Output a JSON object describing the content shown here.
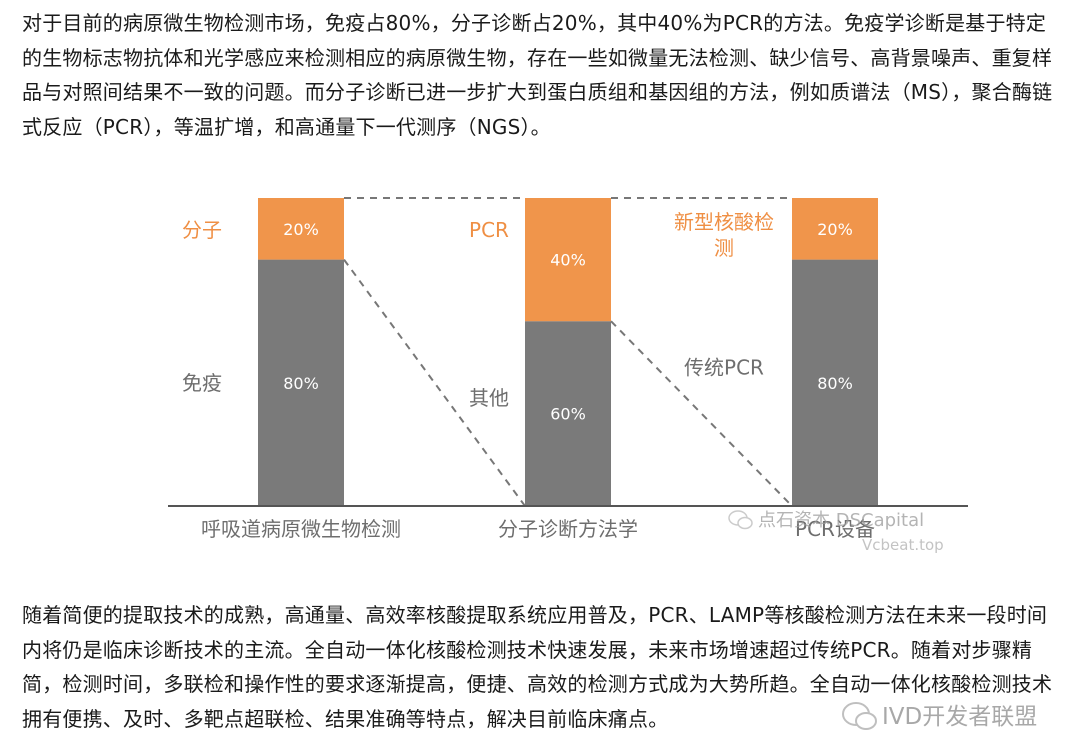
{
  "paragraphs": {
    "intro": "对于目前的病原微生物检测市场，免疫占80%，分子诊断占20%，其中40%为PCR的方法。免疫学诊断是基于特定的生物标志物抗体和光学感应来检测相应的病原微生物，存在一些如微量无法检测、缺少信号、高背景噪声、重复样品与对照间结果不一致的问题。而分子诊断已进一步扩大到蛋白质组和基因组的方法，例如质谱法（MS），聚合酶链式反应（PCR），等温扩增，和高通量下一代测序（NGS）。",
    "outro": "随着简便的提取技术的成熟，高通量、高效率核酸提取系统应用普及，PCR、LAMP等核酸检测方法在未来一段时间内将仍是临床诊断技术的主流。全自动一体化核酸检测技术快速发展，未来市场增速超过传统PCR。随着对步骤精简，检测时间，多联检和操作性的要求逐渐提高，便捷、高效的检测方式成为大势所趋。全自动一体化核酸检测技术拥有便携、及时、多靶点超联检、结果准确等特点，解决目前临床痛点。"
  },
  "colors": {
    "orange": "#F0954B",
    "gray": "#7A7A7A",
    "orange_text": "#EF8F44",
    "gray_text": "#6E6E6E",
    "axis": "#555555",
    "connector": "#777777"
  },
  "chart_data": {
    "type": "bar",
    "subtype": "stacked-100-percent",
    "categories": [
      "呼吸道病原微生物检测",
      "分子诊断方法学",
      "PCR设备"
    ],
    "stacks": [
      {
        "category": "呼吸道病原微生物检测",
        "segments": [
          {
            "name": "免疫",
            "value": 80,
            "label": "80%",
            "color": "gray"
          },
          {
            "name": "分子",
            "value": 20,
            "label": "20%",
            "color": "orange"
          }
        ]
      },
      {
        "category": "分子诊断方法学",
        "segments": [
          {
            "name": "其他",
            "value": 60,
            "label": "60%",
            "color": "gray"
          },
          {
            "name": "PCR",
            "value": 40,
            "label": "40%",
            "color": "orange"
          }
        ]
      },
      {
        "category": "PCR设备",
        "segments": [
          {
            "name": "传统PCR",
            "value": 80,
            "label": "80%",
            "color": "gray"
          },
          {
            "name": "新型核酸检测",
            "value": 20,
            "label": "20%",
            "color": "orange"
          }
        ]
      }
    ],
    "segment_labels": {
      "fenzi": "分子",
      "mianyi": "免疫",
      "pcr": "PCR",
      "qita": "其他",
      "xinxing_line1": "新型核酸检",
      "xinxing_line2": "测",
      "chuantong": "传统PCR"
    },
    "ylim": [
      0,
      100
    ],
    "grid": false,
    "legend": "none",
    "connectors": "dashed lines link each stacked bar's segment boundary to the full height of the next bar"
  },
  "watermarks": {
    "chart": "点石资本 DSCapital",
    "chart_site": "Vcbeat.top",
    "page": "IVD开发者联盟"
  }
}
